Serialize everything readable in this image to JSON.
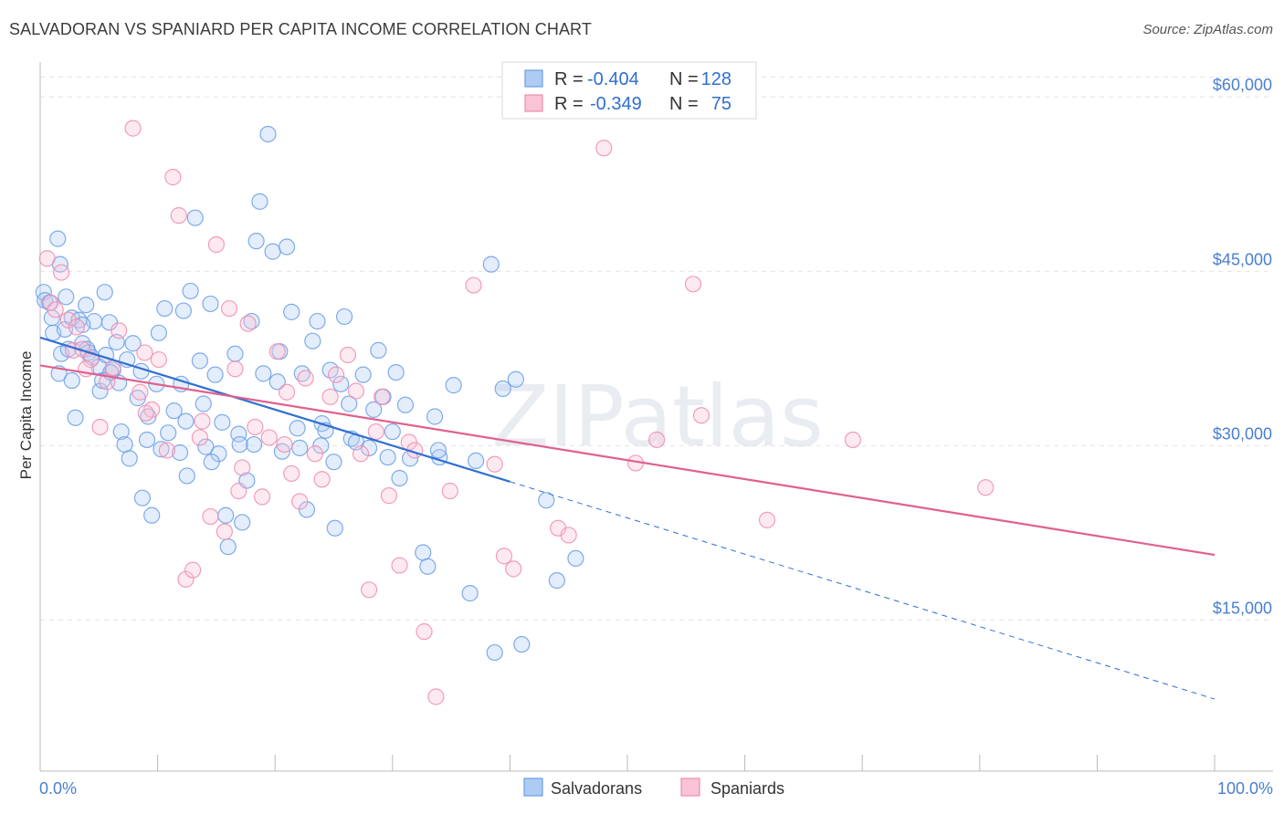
{
  "header": {
    "title": "SALVADORAN VS SPANIARD PER CAPITA INCOME CORRELATION CHART",
    "source": "Source: ZipAtlas.com"
  },
  "watermark": "ZIPatlas",
  "colors": {
    "salvadoran": "#6a9ee6",
    "salvadoran_line": "#2f6fd0",
    "spaniard": "#f08cb0",
    "spaniard_line": "#e0608e",
    "tick_label": "#4a7fd0",
    "grid": "#e4e4e4"
  },
  "legend": {
    "rows": [
      {
        "r_label": "R =",
        "r_value": "-0.404",
        "n_label": "N =",
        "n_value": "128"
      },
      {
        "r_label": "R =",
        "r_value": "-0.349",
        "n_label": "N =",
        "n_value": "75"
      }
    ]
  },
  "bottom_legend": {
    "salvadorans": "Salvadorans",
    "spaniards": "Spaniards"
  },
  "chart_data": {
    "type": "scatter",
    "title": "SALVADORAN VS SPANIARD PER CAPITA INCOME CORRELATION CHART",
    "xlabel": "",
    "ylabel": "Per Capita Income",
    "xlim": [
      0,
      100
    ],
    "ylim": [
      2000,
      63000
    ],
    "x_tick_labels": {
      "left": "0.0%",
      "right": "100.0%"
    },
    "y_ticks": [
      {
        "value": 15000,
        "label": "$15,000"
      },
      {
        "value": 30000,
        "label": "$30,000"
      },
      {
        "value": 45000,
        "label": "$45,000"
      },
      {
        "value": 60000,
        "label": "$60,000"
      }
    ],
    "grid": true,
    "legend_position": "top-center",
    "series": [
      {
        "name": "Salvadorans",
        "trend": {
          "x0": 0,
          "y0": 39300,
          "x1": 40,
          "y1": 26900,
          "dashed_to_x": 100,
          "dashed_to_y": 8200
        },
        "points": [
          [
            0.3,
            43200
          ],
          [
            0.4,
            42500
          ],
          [
            0.8,
            42300
          ],
          [
            1.0,
            41000
          ],
          [
            1.1,
            39700
          ],
          [
            1.5,
            47800
          ],
          [
            1.6,
            36200
          ],
          [
            1.7,
            45600
          ],
          [
            1.8,
            37900
          ],
          [
            2.1,
            40000
          ],
          [
            2.2,
            42800
          ],
          [
            2.4,
            38300
          ],
          [
            2.7,
            41000
          ],
          [
            2.7,
            35600
          ],
          [
            3.0,
            32400
          ],
          [
            3.3,
            40800
          ],
          [
            3.6,
            38800
          ],
          [
            3.9,
            42100
          ],
          [
            4.0,
            38300
          ],
          [
            4.1,
            38000
          ],
          [
            4.4,
            37600
          ],
          [
            4.6,
            40700
          ],
          [
            5.0,
            36800
          ],
          [
            5.1,
            34700
          ],
          [
            5.3,
            35600
          ],
          [
            5.5,
            43200
          ],
          [
            5.6,
            37800
          ],
          [
            5.9,
            40600
          ],
          [
            6.2,
            36500
          ],
          [
            6.5,
            38900
          ],
          [
            6.7,
            35400
          ],
          [
            6.9,
            31200
          ],
          [
            7.2,
            30100
          ],
          [
            7.6,
            28900
          ],
          [
            7.9,
            38800
          ],
          [
            8.3,
            34100
          ],
          [
            8.6,
            36400
          ],
          [
            8.7,
            25500
          ],
          [
            9.1,
            30500
          ],
          [
            9.2,
            32500
          ],
          [
            9.5,
            24000
          ],
          [
            9.9,
            35300
          ],
          [
            10.1,
            39700
          ],
          [
            10.3,
            29700
          ],
          [
            10.6,
            41800
          ],
          [
            10.9,
            31100
          ],
          [
            11.4,
            33000
          ],
          [
            11.9,
            29400
          ],
          [
            12.2,
            41600
          ],
          [
            12.5,
            27400
          ],
          [
            12.8,
            43300
          ],
          [
            13.2,
            49600
          ],
          [
            13.6,
            37300
          ],
          [
            13.9,
            33600
          ],
          [
            14.1,
            29900
          ],
          [
            14.5,
            42200
          ],
          [
            14.9,
            36100
          ],
          [
            15.2,
            29300
          ],
          [
            15.5,
            32000
          ],
          [
            15.8,
            24000
          ],
          [
            16.0,
            21300
          ],
          [
            16.6,
            37900
          ],
          [
            16.9,
            31000
          ],
          [
            17.2,
            23400
          ],
          [
            17.6,
            27000
          ],
          [
            18.0,
            40700
          ],
          [
            18.4,
            47600
          ],
          [
            18.7,
            51000
          ],
          [
            19.0,
            36200
          ],
          [
            19.4,
            56800
          ],
          [
            19.8,
            46700
          ],
          [
            20.2,
            35500
          ],
          [
            20.6,
            29500
          ],
          [
            21.0,
            47100
          ],
          [
            21.4,
            41500
          ],
          [
            21.9,
            31500
          ],
          [
            22.3,
            36200
          ],
          [
            22.7,
            24500
          ],
          [
            23.2,
            39000
          ],
          [
            23.6,
            40700
          ],
          [
            24.0,
            31900
          ],
          [
            24.3,
            31300
          ],
          [
            24.7,
            36500
          ],
          [
            25.1,
            22900
          ],
          [
            25.6,
            35300
          ],
          [
            25.9,
            41100
          ],
          [
            26.5,
            30600
          ],
          [
            26.9,
            30300
          ],
          [
            27.5,
            36100
          ],
          [
            28.0,
            29800
          ],
          [
            28.4,
            33100
          ],
          [
            28.8,
            38200
          ],
          [
            29.2,
            34200
          ],
          [
            29.6,
            29000
          ],
          [
            30.0,
            31200
          ],
          [
            30.6,
            27200
          ],
          [
            31.1,
            33500
          ],
          [
            31.5,
            28900
          ],
          [
            32.6,
            20800
          ],
          [
            33.0,
            19600
          ],
          [
            33.6,
            32500
          ],
          [
            34.0,
            29000
          ],
          [
            35.2,
            35200
          ],
          [
            36.6,
            17300
          ],
          [
            37.1,
            28700
          ],
          [
            38.4,
            45600
          ],
          [
            38.7,
            12200
          ],
          [
            39.4,
            34900
          ],
          [
            40.5,
            35700
          ],
          [
            41.0,
            12900
          ],
          [
            43.1,
            25300
          ],
          [
            44.0,
            18400
          ],
          [
            45.6,
            20300
          ],
          [
            3.6,
            40400
          ],
          [
            6.0,
            36300
          ],
          [
            12.0,
            35300
          ],
          [
            18.2,
            30100
          ],
          [
            22.1,
            29800
          ],
          [
            25.0,
            28600
          ],
          [
            26.3,
            33600
          ],
          [
            30.3,
            36300
          ],
          [
            33.9,
            29600
          ],
          [
            12.4,
            32100
          ],
          [
            17.0,
            30100
          ],
          [
            7.4,
            37400
          ],
          [
            14.6,
            28600
          ],
          [
            20.4,
            38100
          ],
          [
            23.9,
            30000
          ]
        ]
      },
      {
        "name": "Spaniards",
        "trend": {
          "x0": 0,
          "y0": 36900,
          "x1": 100,
          "y1": 20600
        },
        "points": [
          [
            0.6,
            46100
          ],
          [
            0.9,
            42300
          ],
          [
            1.3,
            41700
          ],
          [
            1.8,
            44900
          ],
          [
            2.4,
            40800
          ],
          [
            2.8,
            38200
          ],
          [
            3.1,
            40200
          ],
          [
            3.6,
            38300
          ],
          [
            4.3,
            37400
          ],
          [
            5.1,
            31600
          ],
          [
            5.7,
            35500
          ],
          [
            6.2,
            36700
          ],
          [
            6.7,
            39900
          ],
          [
            7.9,
            57300
          ],
          [
            8.5,
            34600
          ],
          [
            8.9,
            38000
          ],
          [
            9.5,
            33100
          ],
          [
            10.1,
            37400
          ],
          [
            10.8,
            29600
          ],
          [
            11.3,
            53100
          ],
          [
            11.8,
            49800
          ],
          [
            12.4,
            18500
          ],
          [
            13.0,
            19300
          ],
          [
            13.8,
            32100
          ],
          [
            14.5,
            23900
          ],
          [
            15.0,
            47300
          ],
          [
            15.7,
            22600
          ],
          [
            16.1,
            41800
          ],
          [
            16.6,
            36600
          ],
          [
            17.2,
            28100
          ],
          [
            17.7,
            40500
          ],
          [
            18.3,
            31600
          ],
          [
            18.9,
            25600
          ],
          [
            19.5,
            30700
          ],
          [
            20.2,
            38100
          ],
          [
            20.8,
            30100
          ],
          [
            21.4,
            27600
          ],
          [
            22.1,
            25200
          ],
          [
            22.6,
            35800
          ],
          [
            23.4,
            29300
          ],
          [
            24.0,
            27100
          ],
          [
            24.7,
            34200
          ],
          [
            25.2,
            36100
          ],
          [
            26.2,
            37800
          ],
          [
            27.3,
            29300
          ],
          [
            28.0,
            17600
          ],
          [
            29.1,
            34200
          ],
          [
            29.7,
            25700
          ],
          [
            30.6,
            19700
          ],
          [
            31.4,
            30300
          ],
          [
            31.9,
            29600
          ],
          [
            32.7,
            14000
          ],
          [
            33.7,
            8400
          ],
          [
            34.9,
            26100
          ],
          [
            36.9,
            43800
          ],
          [
            38.7,
            28400
          ],
          [
            39.5,
            20500
          ],
          [
            40.3,
            19400
          ],
          [
            44.1,
            22900
          ],
          [
            45.0,
            22300
          ],
          [
            48.0,
            55600
          ],
          [
            50.7,
            28500
          ],
          [
            52.5,
            30500
          ],
          [
            55.6,
            43900
          ],
          [
            56.3,
            32600
          ],
          [
            61.9,
            23600
          ],
          [
            69.2,
            30500
          ],
          [
            80.5,
            26400
          ],
          [
            9.0,
            32800
          ],
          [
            13.6,
            30700
          ],
          [
            21.0,
            34600
          ],
          [
            28.6,
            31200
          ],
          [
            3.9,
            36600
          ],
          [
            16.9,
            26100
          ],
          [
            26.9,
            34700
          ]
        ]
      }
    ]
  }
}
